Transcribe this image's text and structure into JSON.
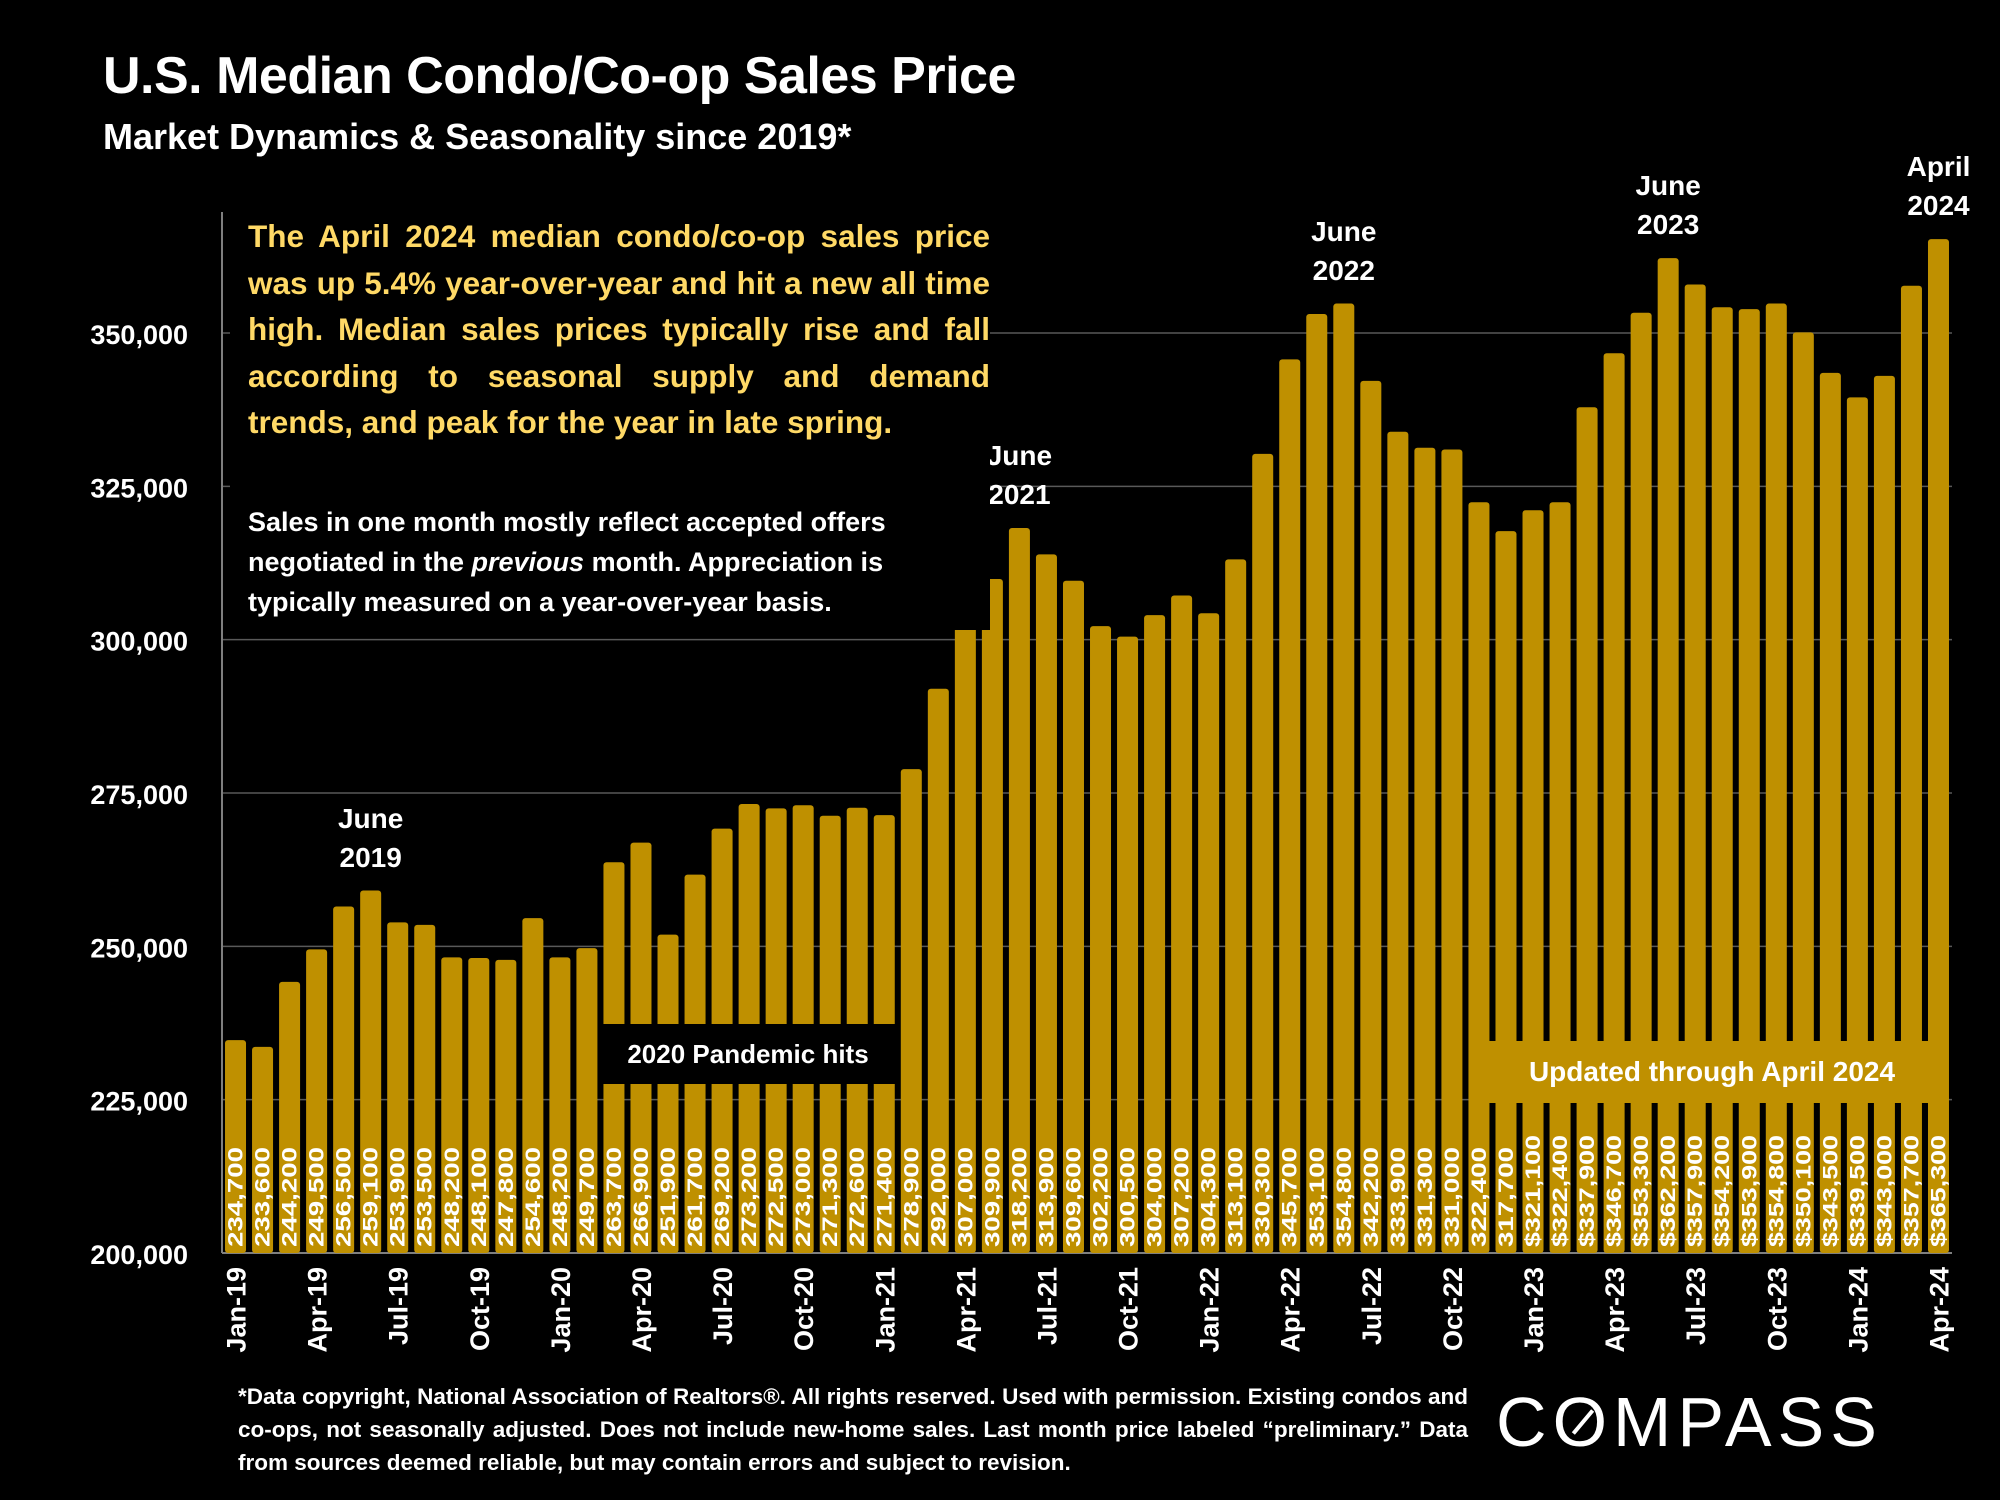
{
  "header": {
    "title": "U.S. Median Condo/Co-op Sales Price",
    "subtitle": "Market Dynamics & Seasonality since 2019*"
  },
  "commentary": {
    "lead": "The April 2024 median condo/co-op sales price was up 5.4% year-over-year and hit a new all time high. Median sales prices typically rise and fall according to seasonal supply and demand trends, and peak for the year in late spring.",
    "note_part1": "Sales in one month mostly reflect accepted offers negotiated in the ",
    "note_italic": "previous",
    "note_part2": " month. Appreciation is typically measured on a year-over-year basis."
  },
  "annotations": {
    "pandemic": "2020 Pandemic hits",
    "updated": "Updated through April 2024"
  },
  "peaks": [
    {
      "line1": "June",
      "line2": "2019",
      "index": 5
    },
    {
      "line1": "June",
      "line2": "2021",
      "index": 29
    },
    {
      "line1": "June",
      "line2": "2022",
      "index": 41
    },
    {
      "line1": "June",
      "line2": "2023",
      "index": 53
    },
    {
      "line1": "April",
      "line2": "2024",
      "index": 63
    }
  ],
  "footer": {
    "footnote": "*Data copyright, National Association of Realtors®. All rights reserved. Used with permission. Existing condos and co-ops, not seasonally adjusted. Does not include new-home sales. Last month price labeled “preliminary.” Data from sources deemed reliable, but may contain errors and subject to revision.",
    "logo": "COMPASS"
  },
  "colors": {
    "bar": "#bf9000",
    "lead_text": "#ffd966",
    "grid": "#595959",
    "background": "#000000"
  },
  "chart_data": {
    "type": "bar",
    "title": "U.S. Median Condo/Co-op Sales Price",
    "subtitle": "Market Dynamics & Seasonality since 2019*",
    "xlabel": "",
    "ylabel": "",
    "ylim": [
      200000,
      370000
    ],
    "yticks": [
      200000,
      225000,
      250000,
      275000,
      300000,
      325000,
      350000
    ],
    "ytick_labels": [
      "200,000",
      "225,000",
      "250,000",
      "275,000",
      "300,000",
      "325,000",
      "350,000"
    ],
    "grid": true,
    "categories": [
      "Jan-19",
      "Feb-19",
      "Mar-19",
      "Apr-19",
      "May-19",
      "Jun-19",
      "Jul-19",
      "Aug-19",
      "Sep-19",
      "Oct-19",
      "Nov-19",
      "Dec-19",
      "Jan-20",
      "Feb-20",
      "Mar-20",
      "Apr-20",
      "May-20",
      "Jun-20",
      "Jul-20",
      "Aug-20",
      "Sep-20",
      "Oct-20",
      "Nov-20",
      "Dec-20",
      "Jan-21",
      "Feb-21",
      "Mar-21",
      "Apr-21",
      "May-21",
      "Jun-21",
      "Jul-21",
      "Aug-21",
      "Sep-21",
      "Oct-21",
      "Nov-21",
      "Dec-21",
      "Jan-22",
      "Feb-22",
      "Mar-22",
      "Apr-22",
      "May-22",
      "Jun-22",
      "Jul-22",
      "Aug-22",
      "Sep-22",
      "Oct-22",
      "Nov-22",
      "Dec-22",
      "Jan-23",
      "Feb-23",
      "Mar-23",
      "Apr-23",
      "May-23",
      "Jun-23",
      "Jul-23",
      "Aug-23",
      "Sep-23",
      "Oct-23",
      "Nov-23",
      "Dec-23",
      "Jan-24",
      "Feb-24",
      "Mar-24",
      "Apr-24"
    ],
    "xtick_labels_shown": [
      "Jan-19",
      "Apr-19",
      "Jul-19",
      "Oct-19",
      "Jan-20",
      "Apr-20",
      "Jul-20",
      "Oct-20",
      "Jan-21",
      "Apr-21",
      "Jul-21",
      "Oct-21",
      "Jan-22",
      "Apr-22",
      "Jul-22",
      "Oct-22",
      "Jan-23",
      "Apr-23",
      "Jul-23",
      "Oct-23",
      "Jan-24",
      "Apr-24"
    ],
    "values": [
      234700,
      233600,
      244200,
      249500,
      256500,
      259100,
      253900,
      253500,
      248200,
      248100,
      247800,
      254600,
      248200,
      249700,
      263700,
      266900,
      251900,
      261700,
      269200,
      273200,
      272500,
      273000,
      271300,
      272600,
      271400,
      278900,
      292000,
      307000,
      309900,
      318200,
      313900,
      309600,
      302200,
      300500,
      304000,
      307200,
      304300,
      313100,
      330300,
      345700,
      353100,
      354800,
      342200,
      333900,
      331300,
      331000,
      322400,
      317700,
      321100,
      322400,
      337900,
      346700,
      353300,
      362200,
      357900,
      354200,
      353900,
      354800,
      350100,
      343500,
      339500,
      343000,
      357700,
      365300
    ],
    "data_labels": [
      "234,700",
      "233,600",
      "244,200",
      "249,500",
      "256,500",
      "259,100",
      "253,900",
      "253,500",
      "248,200",
      "248,100",
      "247,800",
      "254,600",
      "248,200",
      "249,700",
      "263,700",
      "266,900",
      "251,900",
      "261,700",
      "269,200",
      "273,200",
      "272,500",
      "273,000",
      "271,300",
      "272,600",
      "271,400",
      "278,900",
      "292,000",
      "307,000",
      "309,900",
      "318,200",
      "313,900",
      "309,600",
      "302,200",
      "300,500",
      "304,000",
      "307,200",
      "304,300",
      "313,100",
      "330,300",
      "345,700",
      "353,100",
      "354,800",
      "342,200",
      "333,900",
      "331,300",
      "331,000",
      "322,400",
      "317,700",
      "$321,100",
      "$322,400",
      "$337,900",
      "$346,700",
      "$353,300",
      "$362,200",
      "$357,900",
      "$354,200",
      "$353,900",
      "$354,800",
      "$350,100",
      "$343,500",
      "$339,500",
      "$343,000",
      "$357,700",
      "$365,300"
    ],
    "annotations": [
      "June 2019",
      "June 2021",
      "June 2022",
      "June 2023",
      "April 2024",
      "2020 Pandemic hits",
      "Updated through April 2024"
    ]
  }
}
